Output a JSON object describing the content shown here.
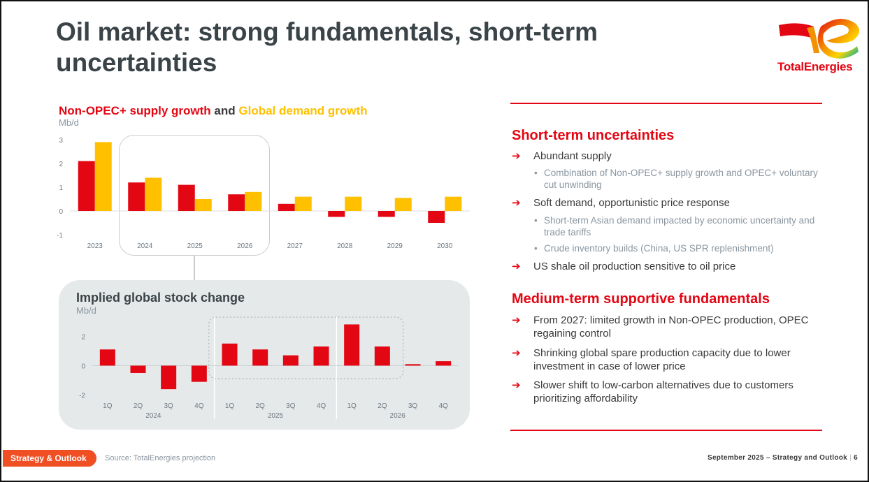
{
  "slide": {
    "title": "Oil market: strong fundamentals, short-term uncertainties",
    "logo_text": "TotalEnergies"
  },
  "chart_data": [
    {
      "type": "bar",
      "title_parts": [
        "Non-OPEC+ supply growth",
        " and ",
        "Global demand growth"
      ],
      "ylabel": "Mb/d",
      "categories": [
        "2023",
        "2024",
        "2025",
        "2026",
        "2027",
        "2028",
        "2029",
        "2030"
      ],
      "series": [
        {
          "name": "Non-OPEC+ supply growth",
          "color": "#e30613",
          "values": [
            2.1,
            1.2,
            1.1,
            0.7,
            0.3,
            -0.25,
            -0.25,
            -0.5
          ]
        },
        {
          "name": "Global demand growth",
          "color": "#ffc000",
          "values": [
            2.9,
            1.4,
            0.5,
            0.8,
            0.6,
            0.6,
            0.55,
            0.6
          ]
        }
      ],
      "yticks": [
        -1,
        0,
        1,
        2,
        3
      ],
      "ylim": [
        -1,
        3
      ],
      "highlight": [
        "2024",
        "2026"
      ]
    },
    {
      "type": "bar",
      "title": "Implied global stock change",
      "ylabel": "Mb/d",
      "categories": [
        "1Q",
        "2Q",
        "3Q",
        "4Q",
        "1Q",
        "2Q",
        "3Q",
        "4Q",
        "1Q",
        "2Q",
        "3Q",
        "4Q"
      ],
      "groups": [
        "2024",
        "2025",
        "2026"
      ],
      "series": [
        {
          "color": "#e30613",
          "values": [
            1.1,
            -0.5,
            -1.6,
            -1.1,
            1.5,
            1.1,
            0.7,
            1.3,
            2.8,
            1.3,
            0.1,
            0.3
          ]
        }
      ],
      "yticks": [
        -2,
        0,
        2
      ],
      "ylim": [
        -2.4,
        3.2
      ],
      "highlight_range": [
        4,
        9
      ]
    }
  ],
  "right": {
    "short_term": {
      "heading": "Short-term uncertainties",
      "b1": "Abundant supply",
      "b1_sub1": "Combination of Non-OPEC+ supply growth and OPEC+ voluntary cut unwinding",
      "b2": "Soft demand, opportunistic price response",
      "b2_sub1": "Short-term Asian demand impacted by economic uncertainty and trade tariffs",
      "b2_sub2": "Crude inventory builds (China, US SPR replenishment)",
      "b3": "US shale oil production sensitive to oil price"
    },
    "medium_term": {
      "heading": "Medium-term supportive fundamentals",
      "b1": "From 2027: limited growth in Non-OPEC production, OPEC regaining control",
      "b2": "Shrinking global spare production capacity due to lower investment in case of lower price",
      "b3": "Slower shift to low-carbon alternatives due to customers prioritizing affordability"
    },
    "arrow": "➔",
    "dot": "•"
  },
  "footer": {
    "tag": "Strategy & Outlook",
    "source": "Source: TotalEnergies projection",
    "right": "September 2025 – Strategy and Outlook",
    "sep": "|",
    "page": "6"
  }
}
